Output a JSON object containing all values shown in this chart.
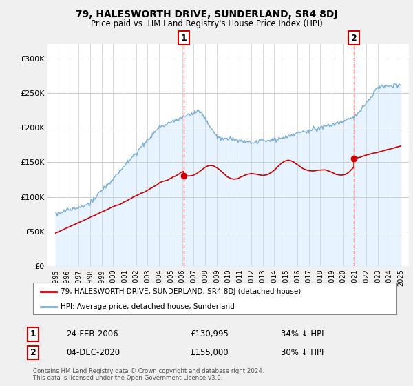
{
  "title": "79, HALESWORTH DRIVE, SUNDERLAND, SR4 8DJ",
  "subtitle": "Price paid vs. HM Land Registry's House Price Index (HPI)",
  "legend_line1": "79, HALESWORTH DRIVE, SUNDERLAND, SR4 8DJ (detached house)",
  "legend_line2": "HPI: Average price, detached house, Sunderland",
  "footnote": "Contains HM Land Registry data © Crown copyright and database right 2024.\nThis data is licensed under the Open Government Licence v3.0.",
  "point1_date": "24-FEB-2006",
  "point1_price": "£130,995",
  "point1_hpi": "34% ↓ HPI",
  "point1_year": 2006.12,
  "point1_value": 130995,
  "point2_date": "04-DEC-2020",
  "point2_price": "£155,000",
  "point2_hpi": "30% ↓ HPI",
  "point2_year": 2020.92,
  "point2_value": 155000,
  "hpi_color": "#7bafd4",
  "hpi_fill_color": "#ddeeff",
  "sold_color": "#cc0000",
  "dashed_color": "#cc0000",
  "bg_color": "#f0f0f0",
  "plot_bg": "#ffffff",
  "ylim": [
    0,
    320000
  ],
  "yticks": [
    0,
    50000,
    100000,
    150000,
    200000,
    250000,
    300000
  ],
  "ytick_labels": [
    "£0",
    "£50K",
    "£100K",
    "£150K",
    "£200K",
    "£250K",
    "£300K"
  ],
  "xlim_left": 1994.3,
  "xlim_right": 2025.7
}
